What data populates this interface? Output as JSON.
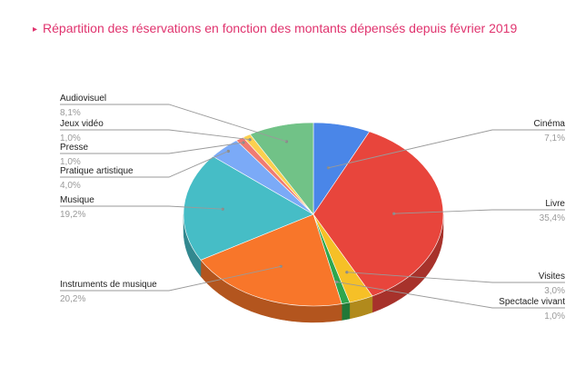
{
  "header": {
    "marker": "▸",
    "title": "Répartition des réservations en fonction des montants dépensés depuis février 2019"
  },
  "chart_data": {
    "type": "pie",
    "title": "Répartition des réservations en fonction des montants dépensés depuis février 2019",
    "slices": [
      {
        "label": "Cinéma",
        "value": 7.1,
        "display": "7,1%",
        "color": "#4a86e8"
      },
      {
        "label": "Livre",
        "value": 35.4,
        "display": "35,4%",
        "color": "#e8453c"
      },
      {
        "label": "Visites",
        "value": 3.0,
        "display": "3,0%",
        "color": "#f6c027"
      },
      {
        "label": "Spectacle vivant",
        "value": 1.0,
        "display": "1,0%",
        "color": "#2ea64d"
      },
      {
        "label": "Instruments de musique",
        "value": 20.2,
        "display": "20,2%",
        "color": "#f8762a"
      },
      {
        "label": "Musique",
        "value": 19.2,
        "display": "19,2%",
        "color": "#46bdc6"
      },
      {
        "label": "Pratique artistique",
        "value": 4.0,
        "display": "4,0%",
        "color": "#7baaf7"
      },
      {
        "label": "Presse",
        "value": 1.0,
        "display": "1,0%",
        "color": "#f07b72"
      },
      {
        "label": "Jeux vidéo",
        "value": 1.0,
        "display": "1,0%",
        "color": "#fcd04f"
      },
      {
        "label": "Audiovisuel",
        "value": 8.1,
        "display": "8,1%",
        "color": "#71c287"
      }
    ]
  }
}
